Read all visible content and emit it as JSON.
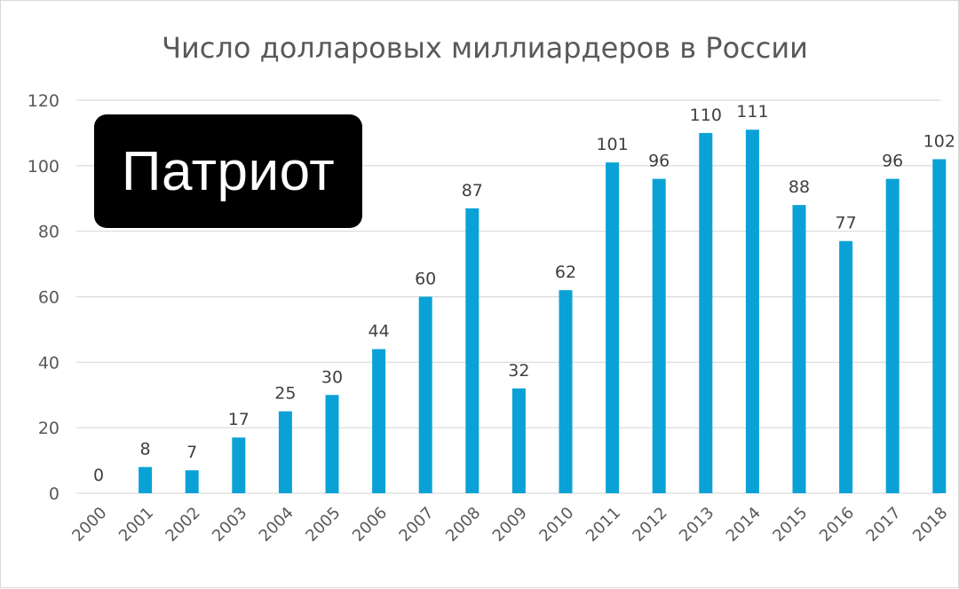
{
  "badge": {
    "label": "Патриот"
  },
  "colors": {
    "bar": "#0aa2d6",
    "grid": "#d9d9d9",
    "text": "#595959",
    "badge_bg": "#000000",
    "badge_fg": "#ffffff"
  },
  "chart_data": {
    "type": "bar",
    "title": "Число долларовых миллиардеров в России",
    "xlabel": "",
    "ylabel": "",
    "ylim": [
      0,
      120
    ],
    "yticks": [
      0,
      20,
      40,
      60,
      80,
      100,
      120
    ],
    "grid": true,
    "categories": [
      "2000",
      "2001",
      "2002",
      "2003",
      "2004",
      "2005",
      "2006",
      "2007",
      "2008",
      "2009",
      "2010",
      "2011",
      "2012",
      "2013",
      "2014",
      "2015",
      "2016",
      "2017",
      "2018"
    ],
    "values": [
      0,
      8,
      7,
      17,
      25,
      30,
      44,
      60,
      87,
      32,
      62,
      101,
      96,
      110,
      111,
      88,
      77,
      96,
      102
    ]
  }
}
